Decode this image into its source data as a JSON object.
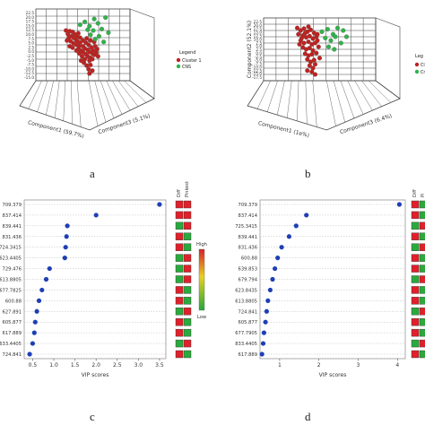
{
  "figure": {
    "panel_labels": [
      "a",
      "b",
      "c",
      "d"
    ]
  },
  "colors": {
    "group1_point": "#c0211f",
    "group2_point": "#2fb44a",
    "vip_point": "#1f3fb5",
    "grid": "#444444",
    "heat_high": "#e0202a",
    "heat_low": "#2aaa3c"
  },
  "chart_data": [
    {
      "type": "scatter",
      "panel": "a",
      "projection": "3d",
      "xlabel": "Component1 (59.7%)",
      "ylabel": "Component3 (5.1%)",
      "zlabel": "",
      "z_ticks": [
        "22.5",
        "20.0",
        "17.5",
        "15.0",
        "12.5",
        "10.0",
        "7.5",
        "5.0",
        "2.5",
        "0.0",
        "-2.5",
        "-5.0",
        "-7.5",
        "-10.0",
        "-12.5",
        "-15.0"
      ],
      "legend": {
        "title": "Legend",
        "entries": [
          "Cluster 1",
          "CNS"
        ],
        "position": "right"
      },
      "series": [
        {
          "name": "Cluster 1",
          "color": "#c0211f",
          "points": [
            [
              0.32,
              0.3
            ],
            [
              0.34,
              0.35
            ],
            [
              0.36,
              0.31
            ],
            [
              0.38,
              0.38
            ],
            [
              0.4,
              0.4
            ],
            [
              0.37,
              0.45
            ],
            [
              0.4,
              0.48
            ],
            [
              0.42,
              0.42
            ],
            [
              0.44,
              0.45
            ],
            [
              0.43,
              0.5
            ],
            [
              0.46,
              0.52
            ],
            [
              0.47,
              0.47
            ],
            [
              0.45,
              0.56
            ],
            [
              0.48,
              0.58
            ],
            [
              0.5,
              0.52
            ],
            [
              0.5,
              0.6
            ],
            [
              0.52,
              0.55
            ],
            [
              0.53,
              0.63
            ],
            [
              0.55,
              0.57
            ],
            [
              0.55,
              0.66
            ],
            [
              0.57,
              0.6
            ],
            [
              0.58,
              0.68
            ],
            [
              0.6,
              0.62
            ],
            [
              0.57,
              0.72
            ],
            [
              0.52,
              0.7
            ],
            [
              0.49,
              0.66
            ],
            [
              0.46,
              0.62
            ],
            [
              0.43,
              0.58
            ],
            [
              0.39,
              0.54
            ],
            [
              0.36,
              0.52
            ],
            [
              0.35,
              0.4
            ],
            [
              0.33,
              0.44
            ],
            [
              0.41,
              0.35
            ],
            [
              0.44,
              0.38
            ],
            [
              0.47,
              0.4
            ],
            [
              0.5,
              0.44
            ],
            [
              0.53,
              0.47
            ],
            [
              0.56,
              0.5
            ],
            [
              0.59,
              0.54
            ],
            [
              0.61,
              0.58
            ],
            [
              0.62,
              0.64
            ],
            [
              0.6,
              0.7
            ],
            [
              0.58,
              0.78
            ],
            [
              0.56,
              0.84
            ],
            [
              0.54,
              0.79
            ],
            [
              0.51,
              0.75
            ],
            [
              0.48,
              0.72
            ],
            [
              0.63,
              0.52
            ],
            [
              0.65,
              0.56
            ],
            [
              0.64,
              0.61
            ],
            [
              0.66,
              0.66
            ],
            [
              0.62,
              0.46
            ],
            [
              0.58,
              0.44
            ],
            [
              0.54,
              0.41
            ],
            [
              0.45,
              0.34
            ],
            [
              0.39,
              0.32
            ],
            [
              0.57,
              0.9
            ],
            [
              0.6,
              0.86
            ]
          ]
        },
        {
          "name": "CNS",
          "color": "#2fb44a",
          "points": [
            [
              0.47,
              0.22
            ],
            [
              0.52,
              0.18
            ],
            [
              0.57,
              0.24
            ],
            [
              0.62,
              0.14
            ],
            [
              0.66,
              0.2
            ],
            [
              0.61,
              0.3
            ],
            [
              0.67,
              0.38
            ],
            [
              0.7,
              0.28
            ],
            [
              0.74,
              0.12
            ],
            [
              0.58,
              0.36
            ],
            [
              0.63,
              0.42
            ],
            [
              0.55,
              0.29
            ],
            [
              0.72,
              0.46
            ],
            [
              0.77,
              0.33
            ]
          ]
        }
      ]
    },
    {
      "type": "scatter",
      "panel": "b",
      "projection": "3d",
      "xlabel": "Component1 (1e%)",
      "ylabel": "Component3 (6.4%)",
      "zlabel": "Component2 (52.1%)",
      "z_ticks": [
        "22.5",
        "20.0",
        "17.5",
        "15.0",
        "12.5",
        "10.0",
        "7.5",
        "5.0",
        "2.5",
        "0.0",
        "-2.5",
        "-5.0",
        "-7.5",
        "-10.0",
        "-12.5",
        "-15.0",
        "-17.5"
      ],
      "legend": {
        "title": "Leg",
        "entries": [
          "Clu",
          "Cns"
        ],
        "position": "right"
      },
      "series": [
        {
          "name": "Clu",
          "color": "#c0211f",
          "points": [
            [
              0.3,
              0.16
            ],
            [
              0.33,
              0.2
            ],
            [
              0.36,
              0.17
            ],
            [
              0.39,
              0.22
            ],
            [
              0.42,
              0.19
            ],
            [
              0.45,
              0.24
            ],
            [
              0.31,
              0.26
            ],
            [
              0.35,
              0.28
            ],
            [
              0.38,
              0.31
            ],
            [
              0.41,
              0.29
            ],
            [
              0.44,
              0.33
            ],
            [
              0.47,
              0.3
            ],
            [
              0.33,
              0.36
            ],
            [
              0.36,
              0.4
            ],
            [
              0.4,
              0.38
            ],
            [
              0.43,
              0.42
            ],
            [
              0.46,
              0.4
            ],
            [
              0.35,
              0.47
            ],
            [
              0.38,
              0.5
            ],
            [
              0.41,
              0.48
            ],
            [
              0.44,
              0.52
            ],
            [
              0.37,
              0.57
            ],
            [
              0.4,
              0.6
            ],
            [
              0.43,
              0.58
            ],
            [
              0.39,
              0.66
            ],
            [
              0.42,
              0.7
            ],
            [
              0.45,
              0.67
            ],
            [
              0.41,
              0.76
            ],
            [
              0.44,
              0.8
            ],
            [
              0.43,
              0.86
            ],
            [
              0.46,
              0.9
            ],
            [
              0.48,
              0.36
            ],
            [
              0.49,
              0.46
            ],
            [
              0.47,
              0.56
            ],
            [
              0.46,
              0.74
            ],
            [
              0.34,
              0.32
            ],
            [
              0.32,
              0.42
            ],
            [
              0.37,
              0.24
            ],
            [
              0.4,
              0.14
            ],
            [
              0.48,
              0.26
            ],
            [
              0.5,
              0.64
            ],
            [
              0.39,
              0.84
            ]
          ]
        },
        {
          "name": "Cns",
          "color": "#2fb44a",
          "points": [
            [
              0.52,
              0.22
            ],
            [
              0.57,
              0.18
            ],
            [
              0.62,
              0.26
            ],
            [
              0.66,
              0.16
            ],
            [
              0.71,
              0.2
            ],
            [
              0.55,
              0.32
            ],
            [
              0.6,
              0.36
            ],
            [
              0.64,
              0.3
            ],
            [
              0.58,
              0.46
            ],
            [
              0.63,
              0.5
            ],
            [
              0.69,
              0.4
            ],
            [
              0.74,
              0.3
            ]
          ]
        }
      ]
    },
    {
      "type": "scatter",
      "panel": "c",
      "xlabel": "VIP scores",
      "ylabel": "",
      "x_ticks": [
        "0.5",
        "1.0",
        "1.5",
        "2.0",
        "2.5",
        "3.0",
        "3.5"
      ],
      "xlim": [
        0.3,
        3.65
      ],
      "grid": true,
      "categories": [
        "709.379",
        "837.414",
        "839.441",
        "831.436",
        "724.3415",
        "623.4405",
        "729.476",
        "613.8805",
        "677.7825",
        "600.88",
        "627.891",
        "605.877",
        "617.889",
        "633.4405",
        "724.841"
      ],
      "values": [
        3.5,
        2.0,
        1.32,
        1.3,
        1.28,
        1.26,
        0.9,
        0.82,
        0.72,
        0.65,
        0.6,
        0.56,
        0.54,
        0.5,
        0.43
      ],
      "heatmap_columns": [
        "Diff",
        "Pinkest"
      ],
      "heatmap_cells": [
        [
          "H",
          "H"
        ],
        [
          "H",
          "H"
        ],
        [
          "L",
          "H"
        ],
        [
          "H",
          "L"
        ],
        [
          "H",
          "L"
        ],
        [
          "L",
          "H"
        ],
        [
          "L",
          "H"
        ],
        [
          "L",
          "H"
        ],
        [
          "H",
          "L"
        ],
        [
          "H",
          "L"
        ],
        [
          "L",
          "H"
        ],
        [
          "H",
          "L"
        ],
        [
          "H",
          "L"
        ],
        [
          "L",
          "H"
        ],
        [
          "H",
          "L"
        ]
      ],
      "colorbar": {
        "high_label": "High",
        "low_label": "Low"
      }
    },
    {
      "type": "scatter",
      "panel": "d",
      "xlabel": "VIP scores",
      "ylabel": "",
      "x_ticks": [
        "1",
        "2",
        "3",
        "4"
      ],
      "xlim": [
        0.5,
        4.2
      ],
      "grid": true,
      "categories": [
        "709.379",
        "837.414",
        "725.3415",
        "839.441",
        "831.436",
        "600.88",
        "639.853",
        "679.794",
        "623.8435",
        "613.8805",
        "724.841",
        "605.877",
        "677.7905",
        "833.4405",
        "617.889"
      ],
      "values": [
        4.05,
        1.68,
        1.42,
        1.24,
        1.05,
        0.95,
        0.88,
        0.82,
        0.76,
        0.7,
        0.67,
        0.64,
        0.6,
        0.58,
        0.55
      ],
      "heatmap_columns": [
        "Diff",
        "Pi"
      ],
      "heatmap_cells": [
        [
          "H",
          "L"
        ],
        [
          "H",
          "L"
        ],
        [
          "L",
          "H"
        ],
        [
          "H",
          "L"
        ],
        [
          "L",
          "H"
        ],
        [
          "H",
          "L"
        ],
        [
          "H",
          "L"
        ],
        [
          "L",
          "H"
        ],
        [
          "H",
          "L"
        ],
        [
          "H",
          "L"
        ],
        [
          "L",
          "H"
        ],
        [
          "H",
          "L"
        ],
        [
          "H",
          "L"
        ],
        [
          "L",
          "H"
        ],
        [
          "H",
          "L"
        ]
      ]
    }
  ]
}
